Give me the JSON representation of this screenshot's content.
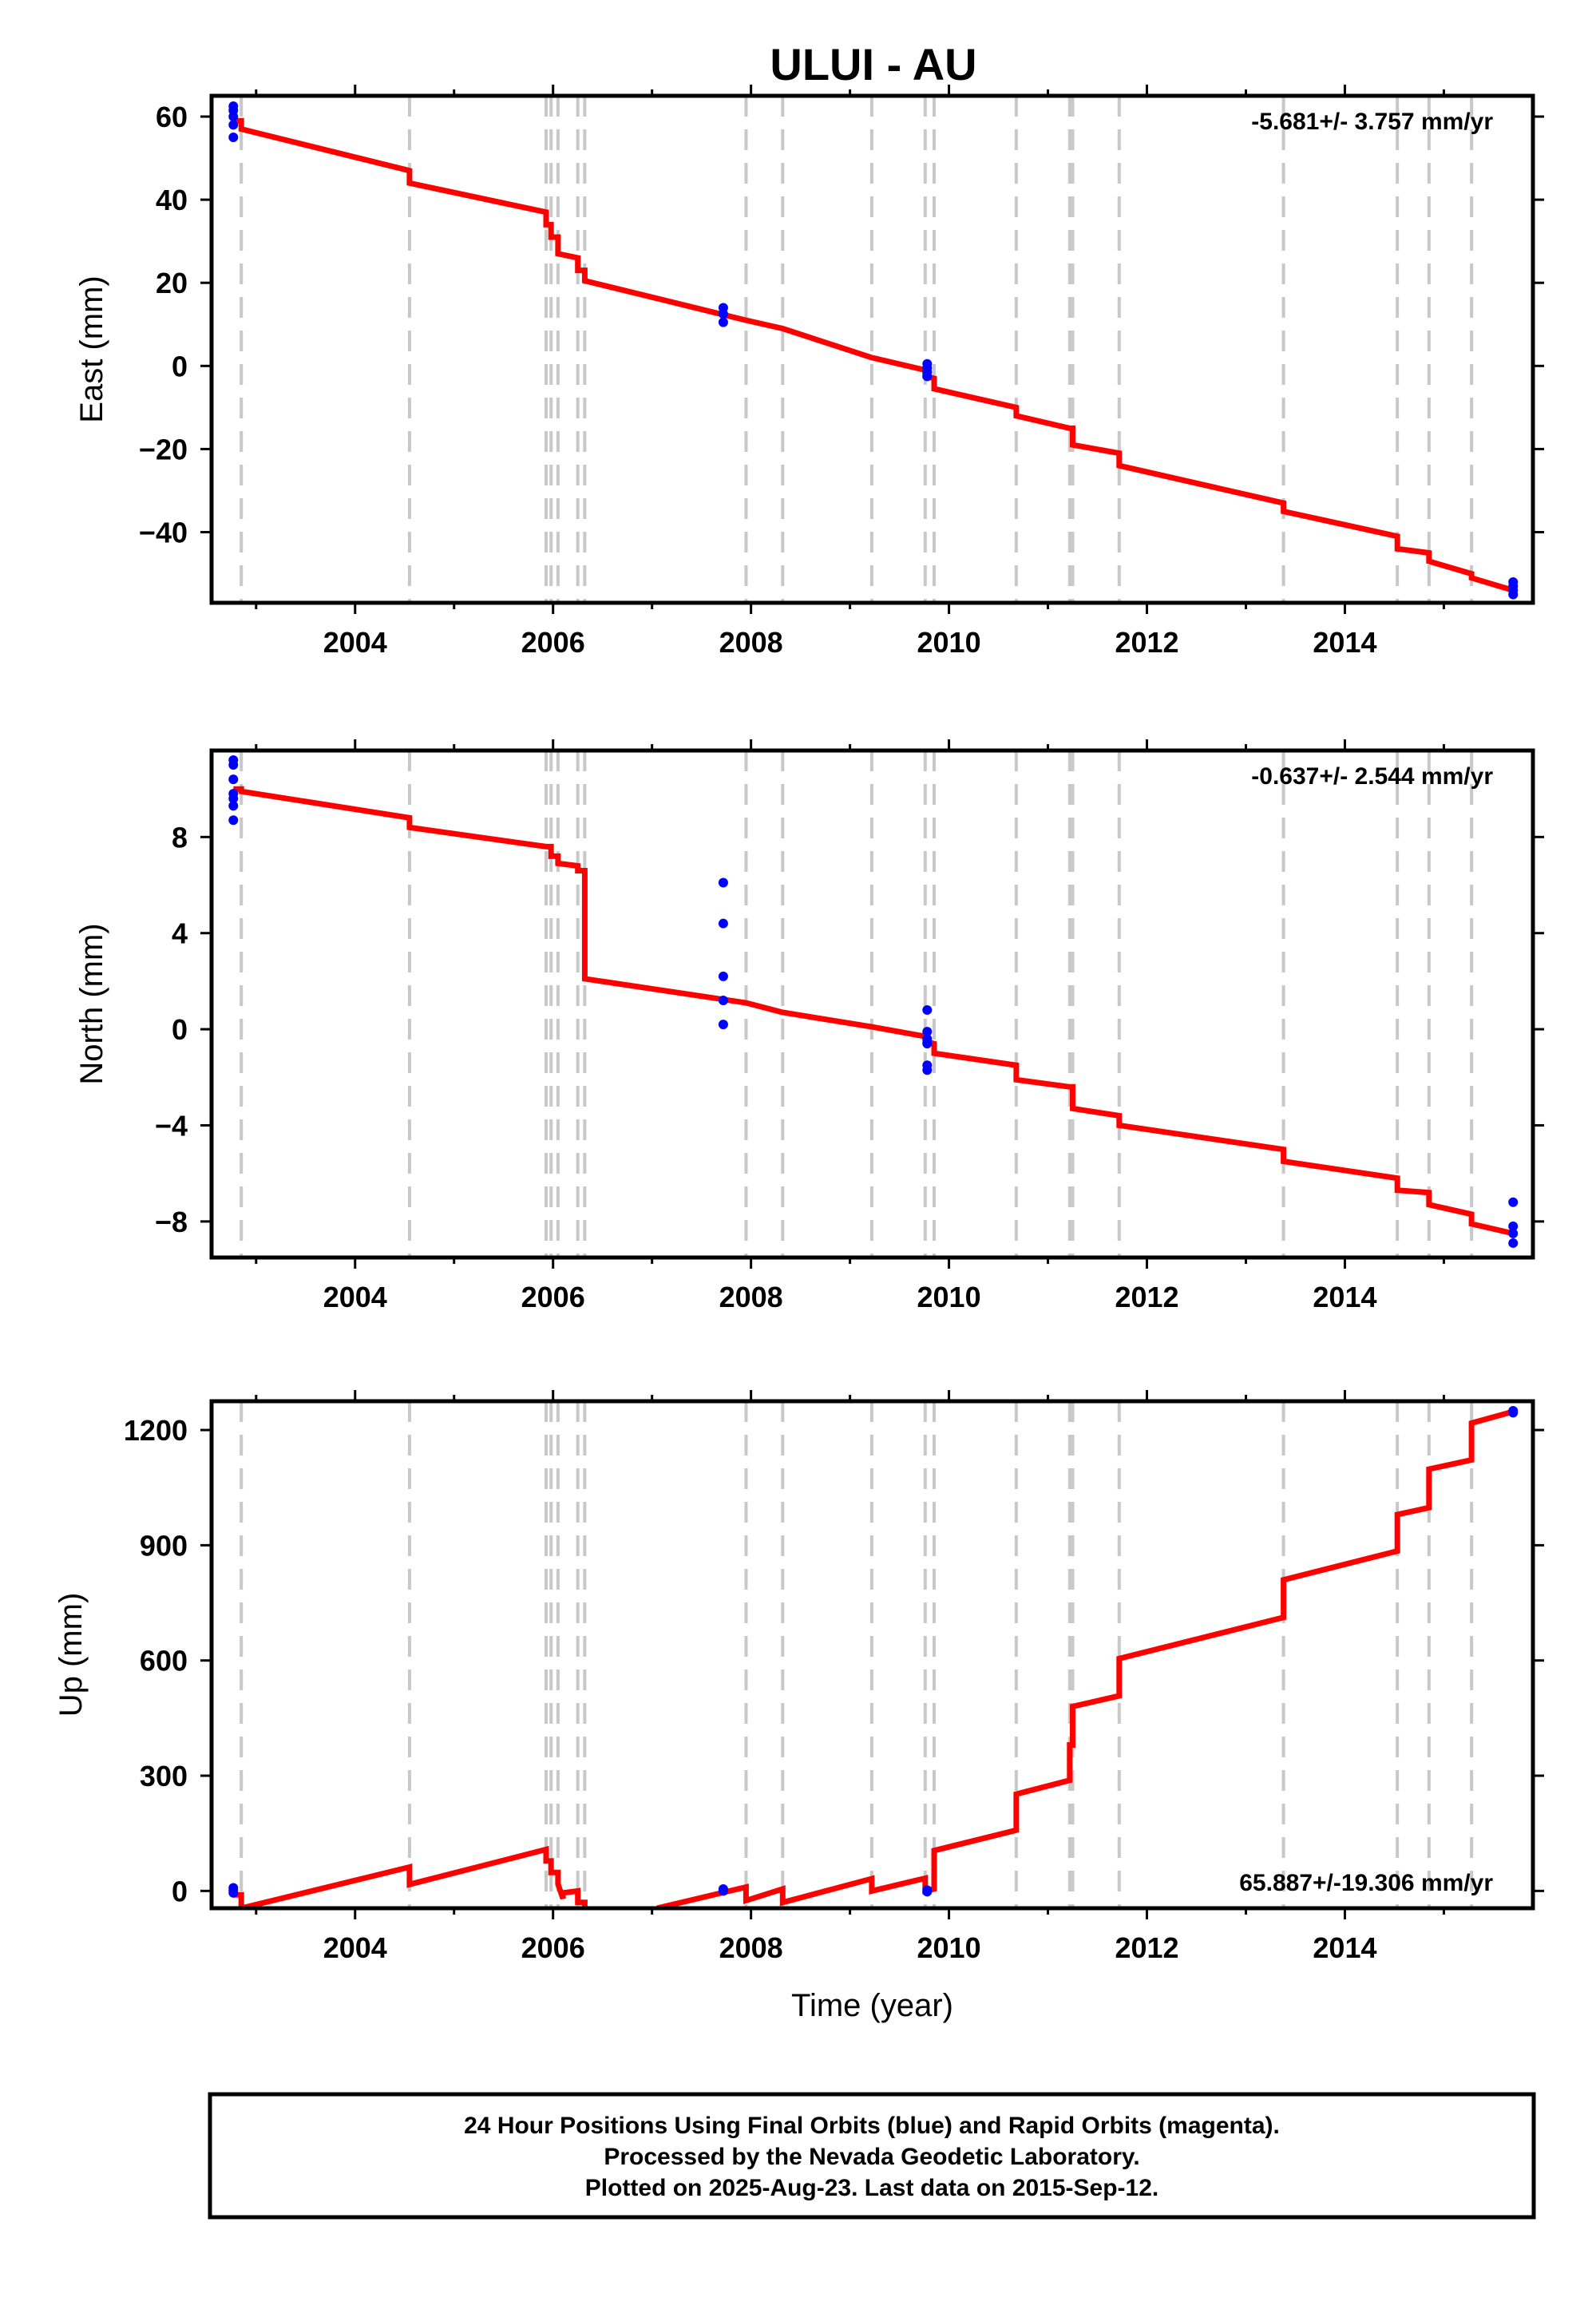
{
  "title": "ULUI - AU",
  "footer": {
    "line1": "24 Hour Positions Using Final Orbits (blue) and Rapid Orbits (magenta).",
    "line2": "Processed by the Nevada Geodetic Laboratory.",
    "line3": "Plotted on 2025-Aug-23. Last data on 2015-Sep-12."
  },
  "colors": {
    "model_line": "#ff0000",
    "final_orbit_points": "#0000ff",
    "steps": "#c8c8c8",
    "frame": "#000000"
  },
  "chart_data": [
    {
      "type": "scatter",
      "ylabel": "East (mm)",
      "xlabel": "",
      "rate_label": "-5.681+/- 3.757 mm/yr",
      "xlim": [
        2002.55,
        2015.9
      ],
      "ylim": [
        -57,
        65
      ],
      "x_ticks": [
        2004,
        2006,
        2008,
        2010,
        2012,
        2014
      ],
      "y_ticks": [
        60,
        40,
        20,
        0,
        -20,
        -40
      ],
      "y_tick_labels": [
        "60",
        "40",
        "20",
        "0",
        "−20",
        "−40"
      ],
      "steps": [
        2002.85,
        2004.55,
        2005.93,
        2005.98,
        2006.05,
        2006.25,
        2006.32,
        2007.95,
        2008.32,
        2009.22,
        2009.76,
        2009.85,
        2010.68,
        2011.22,
        2011.25,
        2011.72,
        2013.38,
        2014.53,
        2014.85,
        2015.28
      ],
      "model": [
        [
          2002.77,
          59
        ],
        [
          2002.85,
          59
        ],
        [
          2002.85,
          57
        ],
        [
          2004.55,
          47
        ],
        [
          2004.55,
          44
        ],
        [
          2005.93,
          37
        ],
        [
          2005.93,
          34
        ],
        [
          2005.98,
          34
        ],
        [
          2005.98,
          31
        ],
        [
          2006.05,
          31
        ],
        [
          2006.05,
          27
        ],
        [
          2006.25,
          26
        ],
        [
          2006.25,
          23
        ],
        [
          2006.32,
          23
        ],
        [
          2006.32,
          20.5
        ],
        [
          2007.95,
          11
        ],
        [
          2008.32,
          9
        ],
        [
          2009.22,
          2
        ],
        [
          2009.76,
          -1
        ],
        [
          2009.76,
          -2.5
        ],
        [
          2009.85,
          -3
        ],
        [
          2009.85,
          -5.5
        ],
        [
          2010.68,
          -10
        ],
        [
          2010.68,
          -12
        ],
        [
          2011.22,
          -15
        ],
        [
          2011.25,
          -15
        ],
        [
          2011.25,
          -19
        ],
        [
          2011.72,
          -21
        ],
        [
          2011.72,
          -24
        ],
        [
          2013.38,
          -33
        ],
        [
          2013.38,
          -35
        ],
        [
          2014.53,
          -41
        ],
        [
          2014.53,
          -44
        ],
        [
          2014.85,
          -45
        ],
        [
          2014.85,
          -47
        ],
        [
          2015.28,
          -50
        ],
        [
          2015.28,
          -51
        ],
        [
          2015.7,
          -54
        ]
      ],
      "points": [
        [
          2002.77,
          62.5
        ],
        [
          2002.77,
          61.5
        ],
        [
          2002.77,
          60
        ],
        [
          2002.77,
          58
        ],
        [
          2002.77,
          55
        ],
        [
          2007.72,
          14
        ],
        [
          2007.72,
          12.5
        ],
        [
          2007.72,
          10.5
        ],
        [
          2009.78,
          0.5
        ],
        [
          2009.78,
          -0.5
        ],
        [
          2009.78,
          -1.5
        ],
        [
          2009.78,
          -2.5
        ],
        [
          2015.7,
          -52
        ],
        [
          2015.7,
          -53
        ],
        [
          2015.7,
          -54
        ],
        [
          2015.7,
          -55
        ]
      ]
    },
    {
      "type": "scatter",
      "ylabel": "North (mm)",
      "xlabel": "",
      "rate_label": "-0.637+/- 2.544 mm/yr",
      "xlim": [
        2002.55,
        2015.9
      ],
      "ylim": [
        -9.5,
        11.6
      ],
      "x_ticks": [
        2004,
        2006,
        2008,
        2010,
        2012,
        2014
      ],
      "y_ticks": [
        8,
        4,
        0,
        -4,
        -8
      ],
      "y_tick_labels": [
        "8",
        "4",
        "0",
        "−4",
        "−8"
      ],
      "steps": [
        2002.85,
        2004.55,
        2005.93,
        2005.98,
        2006.05,
        2006.25,
        2006.32,
        2007.95,
        2008.32,
        2009.22,
        2009.76,
        2009.85,
        2010.68,
        2011.22,
        2011.25,
        2011.72,
        2013.38,
        2014.53,
        2014.85,
        2015.28
      ],
      "model": [
        [
          2002.77,
          10
        ],
        [
          2002.85,
          10
        ],
        [
          2002.85,
          9.9
        ],
        [
          2004.55,
          8.8
        ],
        [
          2004.55,
          8.4
        ],
        [
          2005.93,
          7.6
        ],
        [
          2005.98,
          7.6
        ],
        [
          2005.98,
          7.2
        ],
        [
          2006.05,
          7.2
        ],
        [
          2006.05,
          6.9
        ],
        [
          2006.25,
          6.8
        ],
        [
          2006.25,
          6.6
        ],
        [
          2006.32,
          6.6
        ],
        [
          2006.32,
          2.1
        ],
        [
          2007.95,
          1.1
        ],
        [
          2008.32,
          0.7
        ],
        [
          2009.22,
          0.1
        ],
        [
          2009.76,
          -0.3
        ],
        [
          2009.76,
          -0.5
        ],
        [
          2009.85,
          -0.6
        ],
        [
          2009.85,
          -1.0
        ],
        [
          2010.68,
          -1.5
        ],
        [
          2010.68,
          -2.1
        ],
        [
          2011.22,
          -2.4
        ],
        [
          2011.25,
          -2.4
        ],
        [
          2011.25,
          -3.3
        ],
        [
          2011.72,
          -3.6
        ],
        [
          2011.72,
          -4.0
        ],
        [
          2013.38,
          -5.0
        ],
        [
          2013.38,
          -5.5
        ],
        [
          2014.53,
          -6.2
        ],
        [
          2014.53,
          -6.7
        ],
        [
          2014.85,
          -6.8
        ],
        [
          2014.85,
          -7.3
        ],
        [
          2015.28,
          -7.7
        ],
        [
          2015.28,
          -8.1
        ],
        [
          2015.7,
          -8.5
        ]
      ],
      "points": [
        [
          2002.77,
          11.2
        ],
        [
          2002.77,
          11.0
        ],
        [
          2002.77,
          10.4
        ],
        [
          2002.77,
          9.8
        ],
        [
          2002.77,
          9.6
        ],
        [
          2002.77,
          9.3
        ],
        [
          2002.77,
          8.7
        ],
        [
          2007.72,
          6.1
        ],
        [
          2007.72,
          4.4
        ],
        [
          2007.72,
          2.2
        ],
        [
          2007.72,
          1.2
        ],
        [
          2007.72,
          0.2
        ],
        [
          2009.78,
          0.8
        ],
        [
          2009.78,
          -0.1
        ],
        [
          2009.78,
          -0.4
        ],
        [
          2009.78,
          -0.6
        ],
        [
          2009.78,
          -1.5
        ],
        [
          2009.78,
          -1.7
        ],
        [
          2015.7,
          -7.2
        ],
        [
          2015.7,
          -8.2
        ],
        [
          2015.7,
          -8.5
        ],
        [
          2015.7,
          -8.9
        ]
      ]
    },
    {
      "type": "scatter",
      "ylabel": "Up (mm)",
      "xlabel": "Time (year)",
      "rate_label": "65.887+/-19.306 mm/yr",
      "xlim": [
        2002.55,
        2015.9
      ],
      "ylim": [
        -45,
        1275
      ],
      "x_ticks": [
        2004,
        2006,
        2008,
        2010,
        2012,
        2014
      ],
      "y_ticks": [
        1200,
        900,
        600,
        300,
        0
      ],
      "y_tick_labels": [
        "1200",
        "900",
        "600",
        "300",
        "0"
      ],
      "steps": [
        2002.85,
        2004.55,
        2005.93,
        2005.98,
        2006.05,
        2006.25,
        2006.32,
        2007.95,
        2008.32,
        2009.22,
        2009.76,
        2009.85,
        2010.68,
        2011.22,
        2011.25,
        2011.72,
        2013.38,
        2014.53,
        2014.85,
        2015.28
      ],
      "model": [
        [
          2002.77,
          -10
        ],
        [
          2002.85,
          -10
        ],
        [
          2002.85,
          -45
        ],
        [
          2004.55,
          62
        ],
        [
          2004.55,
          17
        ],
        [
          2005.93,
          108
        ],
        [
          2005.93,
          78
        ],
        [
          2005.98,
          78
        ],
        [
          2005.98,
          48
        ],
        [
          2006.05,
          48
        ],
        [
          2006.05,
          18
        ],
        [
          2006.1,
          -20
        ],
        [
          2006.1,
          -5
        ],
        [
          2006.25,
          0
        ],
        [
          2006.25,
          -30
        ],
        [
          2006.32,
          -30
        ],
        [
          2006.32,
          -45
        ]
      ],
      "model_segment_2": [
        [
          2007.05,
          -45
        ],
        [
          2007.95,
          10
        ],
        [
          2007.95,
          -25
        ],
        [
          2008.32,
          5
        ],
        [
          2008.32,
          -30
        ],
        [
          2009.22,
          32
        ],
        [
          2009.22,
          0
        ],
        [
          2009.76,
          33
        ],
        [
          2009.76,
          0
        ],
        [
          2009.85,
          5
        ],
        [
          2009.85,
          105
        ],
        [
          2010.68,
          158
        ],
        [
          2010.68,
          252
        ],
        [
          2011.22,
          288
        ],
        [
          2011.22,
          380
        ],
        [
          2011.25,
          380
        ],
        [
          2011.25,
          480
        ],
        [
          2011.72,
          508
        ],
        [
          2011.72,
          605
        ],
        [
          2013.38,
          712
        ],
        [
          2013.38,
          810
        ],
        [
          2014.53,
          885
        ],
        [
          2014.53,
          980
        ],
        [
          2014.85,
          998
        ],
        [
          2014.85,
          1098
        ],
        [
          2015.28,
          1122
        ],
        [
          2015.28,
          1218
        ],
        [
          2015.7,
          1248
        ]
      ],
      "points": [
        [
          2002.77,
          8
        ],
        [
          2002.77,
          2
        ],
        [
          2002.77,
          -5
        ],
        [
          2007.72,
          5
        ],
        [
          2007.72,
          0
        ],
        [
          2009.78,
          2
        ],
        [
          2009.78,
          -2
        ],
        [
          2015.7,
          1250
        ],
        [
          2015.7,
          1245
        ]
      ]
    }
  ]
}
